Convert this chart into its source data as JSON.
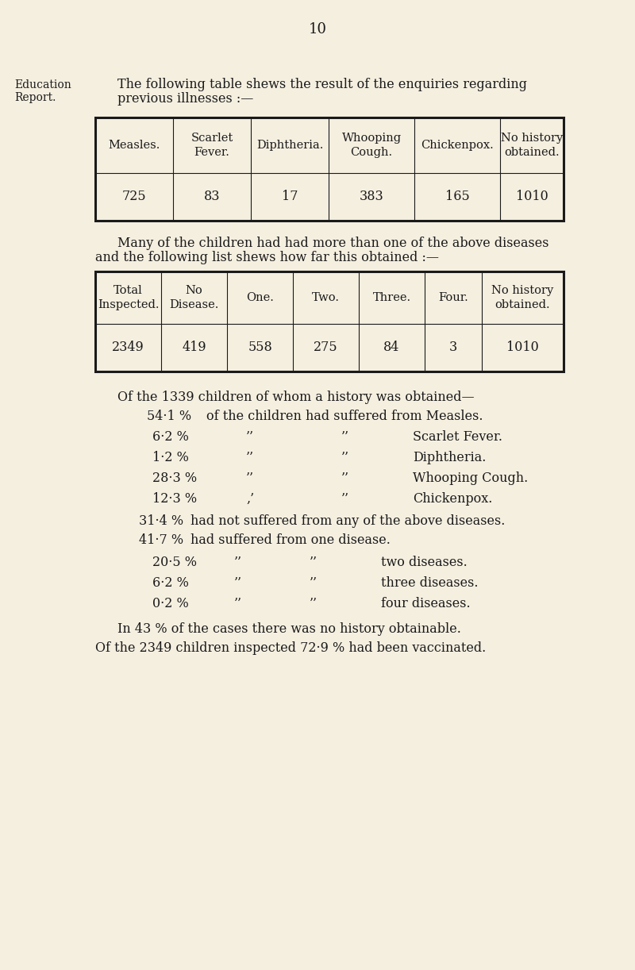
{
  "bg_color": "#f5efe0",
  "text_color": "#1a1a1a",
  "page_number": "10",
  "left_label_line1": "Education",
  "left_label_line2": "Report.",
  "table1_headers": [
    "Measles.",
    "Scarlet\nFever.",
    "Diphtheria.",
    "Whooping\nCough.",
    "Chickenpox.",
    "No history\nobtained."
  ],
  "table1_values": [
    "725",
    "83",
    "17",
    "383",
    "165",
    "1010"
  ],
  "table2_headers": [
    "Total\nInspected.",
    "No\nDisease.",
    "One.",
    "Two.",
    "Three.",
    "Four.",
    "No history\nobtained."
  ],
  "table2_values": [
    "2349",
    "419",
    "558",
    "275",
    "84",
    "3",
    "1010"
  ],
  "footer_lines": [
    "In 43 % of the cases there was no history obtainable.",
    "Of the 2349 children inspected 72·9 % had been vaccinated."
  ]
}
